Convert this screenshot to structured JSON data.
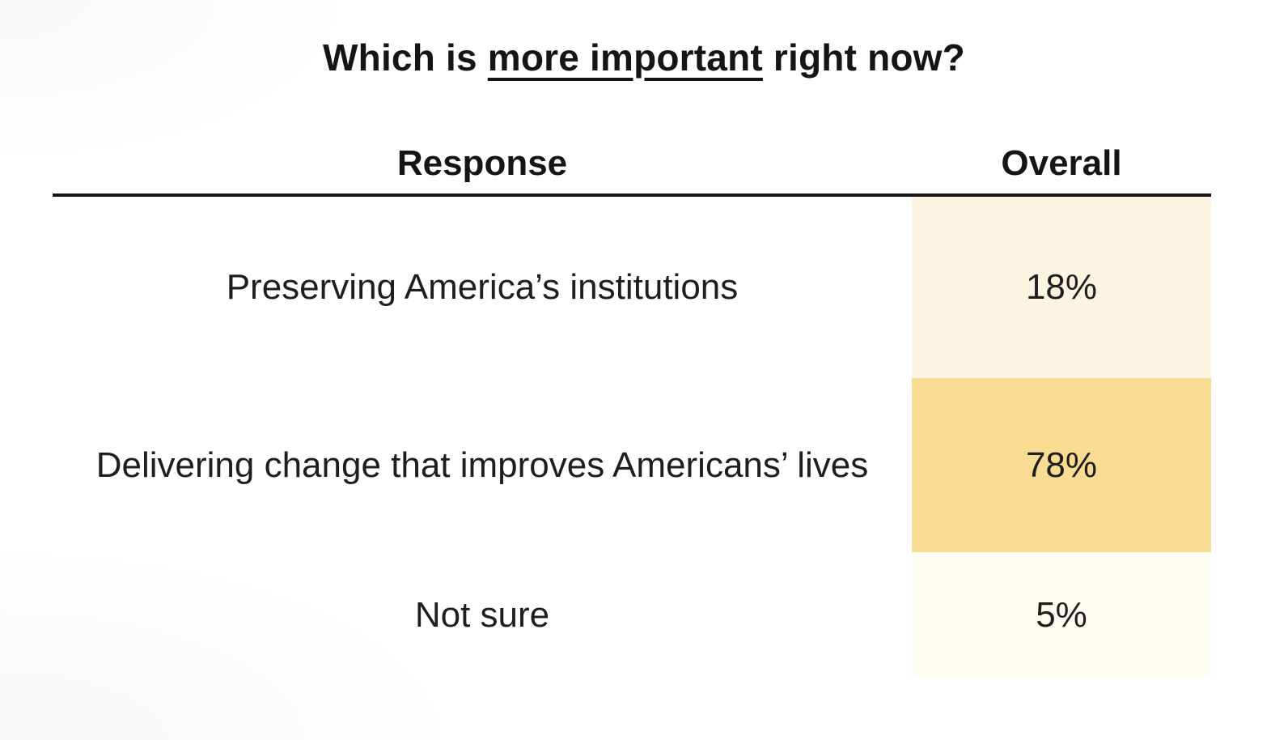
{
  "title": {
    "prefix": "Which is ",
    "emphasis": "more important",
    "suffix": " right now?"
  },
  "table": {
    "headers": {
      "response": "Response",
      "overall": "Overall"
    },
    "rows": [
      {
        "label": "Preserving America’s institutions",
        "value": "18%",
        "color": "#FBF4E0"
      },
      {
        "label": "Delivering change that improves Americans’ lives",
        "value": "78%",
        "color": "#F7DC92"
      },
      {
        "label": "Not sure",
        "value": "5%",
        "color": "#FEFBF2"
      }
    ]
  },
  "colors": {
    "rule": "#161616",
    "text": "#1e1e1e",
    "background": "#ffffff",
    "shade_low": "#FBF4E0",
    "shade_high": "#F7DC92",
    "shade_min": "#FEFBF2"
  },
  "chart_data": {
    "type": "table",
    "title": "Which is more important right now?",
    "columns": [
      "Response",
      "Overall"
    ],
    "categories": [
      "Preserving America’s institutions",
      "Delivering change that improves Americans’ lives",
      "Not sure"
    ],
    "values": [
      18,
      78,
      5
    ],
    "value_unit": "percent",
    "layout_hints": {
      "value_cells_shaded_by_magnitude": true,
      "header_rule": "single solid line under headers",
      "alignment": "all cells centered"
    }
  }
}
